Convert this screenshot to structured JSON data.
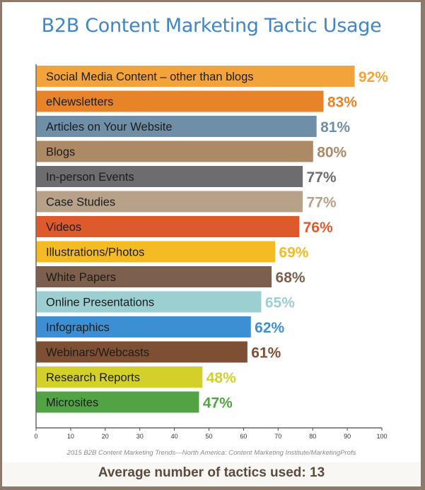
{
  "chart_data": {
    "type": "bar",
    "orientation": "horizontal",
    "title": "B2B Content Marketing Tactic Usage",
    "categories": [
      "Social Media Content – other than blogs",
      "eNewsletters",
      "Articles on Your Website",
      "Blogs",
      "In-person Events",
      "Case Studies",
      "Videos",
      "Illustrations/Photos",
      "White Papers",
      "Online Presentations",
      "Infographics",
      "Webinars/Webcasts",
      "Research Reports",
      "Microsites"
    ],
    "values": [
      92,
      83,
      81,
      80,
      77,
      77,
      76,
      69,
      68,
      65,
      62,
      61,
      48,
      47
    ],
    "value_labels": [
      "92%",
      "83%",
      "81%",
      "80%",
      "77%",
      "77%",
      "76%",
      "69%",
      "68%",
      "65%",
      "62%",
      "61%",
      "48%",
      "47%"
    ],
    "colors": [
      "#f2a43a",
      "#e8832a",
      "#6f8fa8",
      "#ad8a66",
      "#6d6d6f",
      "#b7a289",
      "#dd5a2c",
      "#f4bb24",
      "#7c5f4c",
      "#9bcfd2",
      "#3c8fd3",
      "#7e4f33",
      "#d3d02a",
      "#52a344"
    ],
    "xlim": [
      0,
      100
    ],
    "xticks": [
      "0",
      "10",
      "20",
      "30",
      "40",
      "50",
      "60",
      "70",
      "80",
      "90",
      "100"
    ],
    "grid": false,
    "legend": "none"
  },
  "source": "2015 B2B Content Marketing Trends—North America: Content Marketing Institute/MarketingProfs",
  "footer": "Average number of tactics used: 13"
}
